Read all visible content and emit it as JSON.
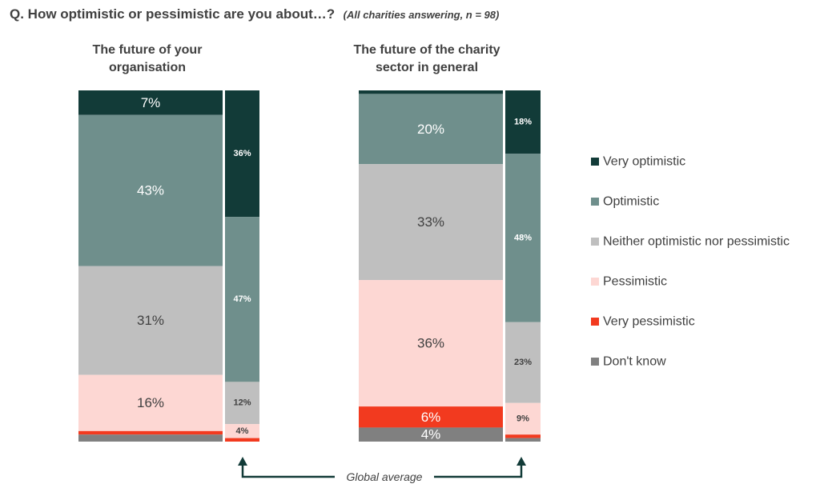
{
  "header": {
    "question": "Q. How optimistic or pessimistic are you about…?",
    "subtitle": "(All charities answering, n = 98)"
  },
  "note": "Global average",
  "chart_data": {
    "type": "bar",
    "stacked": true,
    "categories": [
      "Very optimistic",
      "Optimistic",
      "Neither optimistic nor pessimistic",
      "Pessimistic",
      "Very pessimistic",
      "Don't know"
    ],
    "colors": [
      "#123b38",
      "#6f8f8c",
      "#bfbfbf",
      "#fdd7d3",
      "#f23a1f",
      "#808080"
    ],
    "legend_position": "right",
    "groups": [
      {
        "title_lines": [
          "The future of your",
          "organisation"
        ],
        "main": {
          "values": [
            7,
            43,
            31,
            16,
            1,
            2
          ],
          "labels": [
            "7%",
            "43%",
            "31%",
            "16%",
            "",
            ""
          ]
        },
        "global": {
          "values": [
            36,
            47,
            12,
            4,
            1,
            0
          ],
          "labels": [
            "36%",
            "47%",
            "12%",
            "4%",
            "",
            ""
          ]
        }
      },
      {
        "title_lines": [
          "The future of the charity",
          "sector in general"
        ],
        "main": {
          "values": [
            1,
            20,
            33,
            36,
            6,
            4
          ],
          "labels": [
            "",
            "20%",
            "33%",
            "36%",
            "6%",
            "4%"
          ]
        },
        "global": {
          "values": [
            18,
            48,
            23,
            9,
            1,
            1
          ],
          "labels": [
            "18%",
            "48%",
            "23%",
            "9%",
            "",
            ""
          ]
        }
      }
    ]
  }
}
